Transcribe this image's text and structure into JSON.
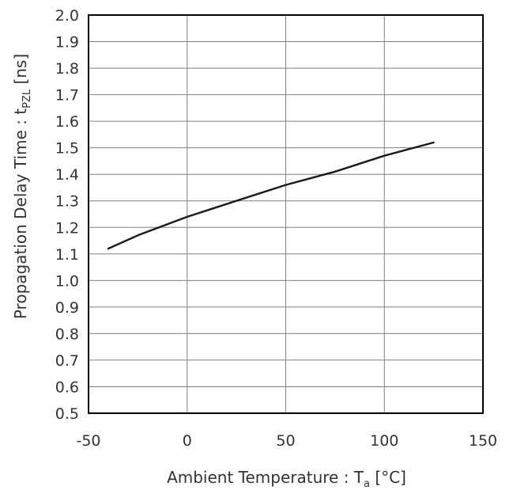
{
  "chart_data": {
    "type": "line",
    "xlabel": {
      "main": "Ambient Temperature : T",
      "sub": "a",
      "unit": " [°C]"
    },
    "ylabel": {
      "main": "Propagation Delay Time : t",
      "sub": "PZL",
      "unit": " [ns]"
    },
    "xlim": [
      -50,
      150
    ],
    "ylim": [
      0.5,
      2.0
    ],
    "xticks": [
      -50,
      0,
      50,
      100,
      150
    ],
    "yticks": [
      0.5,
      0.6,
      0.7,
      0.8,
      0.9,
      1.0,
      1.1,
      1.2,
      1.3,
      1.4,
      1.5,
      1.6,
      1.7,
      1.8,
      1.9,
      2.0
    ],
    "xtick_labels": [
      "-50",
      "0",
      "50",
      "100",
      "150"
    ],
    "ytick_labels": [
      "0.5",
      "0.6",
      "0.7",
      "0.8",
      "0.9",
      "1.0",
      "1.1",
      "1.2",
      "1.3",
      "1.4",
      "1.5",
      "1.6",
      "1.7",
      "1.8",
      "1.9",
      "2.0"
    ],
    "grid": true,
    "line_color": "#1a1a1a",
    "grid_color": "#808080",
    "frame_color": "#000000",
    "series": [
      {
        "x": [
          -40,
          -25,
          0,
          25,
          50,
          75,
          100,
          125
        ],
        "y": [
          1.12,
          1.17,
          1.24,
          1.3,
          1.36,
          1.41,
          1.47,
          1.52
        ]
      }
    ]
  }
}
